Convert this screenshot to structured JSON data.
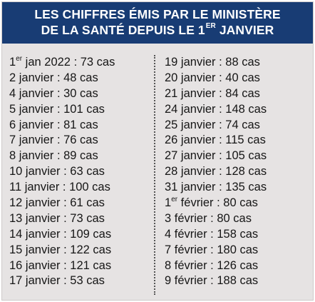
{
  "header": {
    "line1": "LES CHIFFRES ÉMIS PAR LE MINISTÈRE",
    "line2_text": "DE LA SANTÉ DEPUIS LE 1",
    "line2_sup": "ER",
    "line2_end": " JANVIER"
  },
  "colors": {
    "header_bg": "#183c74",
    "header_text": "#ffffff",
    "card_bg": "#e6e3e3",
    "body_text": "#161616"
  },
  "left_column": [
    {
      "prefix": "1",
      "sup": "er",
      "rest": " jan 2022 : 73 cas"
    },
    {
      "prefix": "2 janvier : 48 cas",
      "sup": "",
      "rest": ""
    },
    {
      "prefix": "4 janvier : 30 cas",
      "sup": "",
      "rest": ""
    },
    {
      "prefix": "5 janvier : 101 cas",
      "sup": "",
      "rest": ""
    },
    {
      "prefix": "6 janvier : 81 cas",
      "sup": "",
      "rest": ""
    },
    {
      "prefix": "7 janvier : 76 cas",
      "sup": "",
      "rest": ""
    },
    {
      "prefix": "8 janvier : 89 cas",
      "sup": "",
      "rest": ""
    },
    {
      "prefix": "10 janvier : 63 cas",
      "sup": "",
      "rest": ""
    },
    {
      "prefix": "11 janvier : 100 cas",
      "sup": "",
      "rest": ""
    },
    {
      "prefix": "12 janvier : 61 cas",
      "sup": "",
      "rest": ""
    },
    {
      "prefix": "13 janvier : 73 cas",
      "sup": "",
      "rest": ""
    },
    {
      "prefix": "14 janvier : 109 cas",
      "sup": "",
      "rest": ""
    },
    {
      "prefix": "15 janvier : 122 cas",
      "sup": "",
      "rest": ""
    },
    {
      "prefix": "16 janvier : 121 cas",
      "sup": "",
      "rest": ""
    },
    {
      "prefix": "17 janvier : 53 cas",
      "sup": "",
      "rest": ""
    }
  ],
  "right_column": [
    {
      "prefix": "19 janvier : 88 cas",
      "sup": "",
      "rest": ""
    },
    {
      "prefix": "20 janvier : 40 cas",
      "sup": "",
      "rest": ""
    },
    {
      "prefix": "21 janvier : 84 cas",
      "sup": "",
      "rest": ""
    },
    {
      "prefix": "24 janvier : 148 cas",
      "sup": "",
      "rest": ""
    },
    {
      "prefix": "25 janvier : 74 cas",
      "sup": "",
      "rest": ""
    },
    {
      "prefix": "26 janvier : 115 cas",
      "sup": "",
      "rest": ""
    },
    {
      "prefix": "27 janvier : 105 cas",
      "sup": "",
      "rest": ""
    },
    {
      "prefix": "28 janvier : 128 cas",
      "sup": "",
      "rest": ""
    },
    {
      "prefix": "31 janvier : 135 cas",
      "sup": "",
      "rest": ""
    },
    {
      "prefix": "1",
      "sup": "er",
      "rest": " février : 80 cas"
    },
    {
      "prefix": "3 février : 80 cas",
      "sup": "",
      "rest": ""
    },
    {
      "prefix": "4 février : 158 cas",
      "sup": "",
      "rest": ""
    },
    {
      "prefix": "7 février : 180 cas",
      "sup": "",
      "rest": ""
    },
    {
      "prefix": "8 février : 126 cas",
      "sup": "",
      "rest": ""
    },
    {
      "prefix": "9 février : 188 cas",
      "sup": "",
      "rest": ""
    }
  ]
}
